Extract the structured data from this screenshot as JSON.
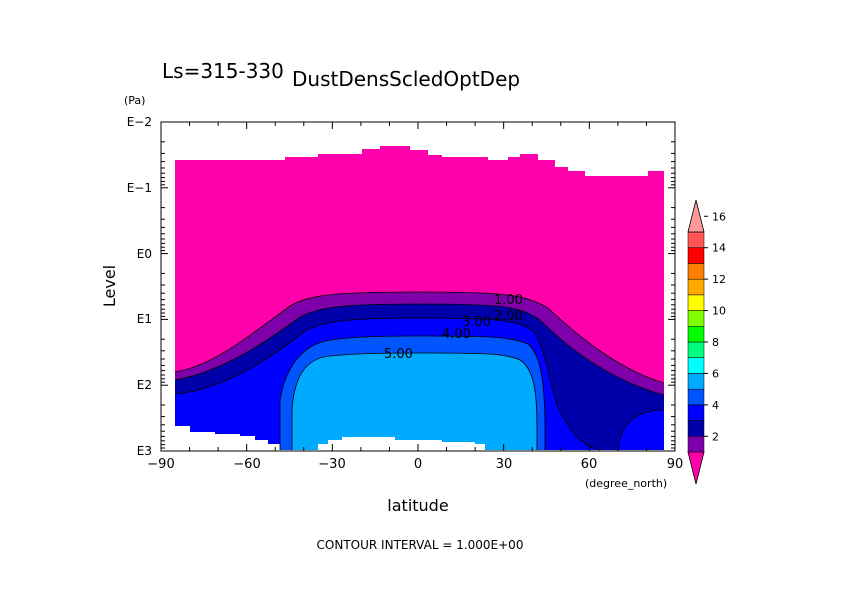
{
  "chart_data": {
    "type": "contour",
    "season_label": "Ls=315-330",
    "title": "DustDensScledOptDep",
    "xlabel": "latitude",
    "xunit": "(degree_north)",
    "ylabel": "Level",
    "yunit": "(Pa)",
    "xlim": [
      -90,
      90
    ],
    "ylim_log10_pa": [
      -2,
      3
    ],
    "y_scale": "log",
    "y_inverted": true,
    "x_ticks": [
      "−90",
      "−60",
      "−30",
      "0",
      "30",
      "60",
      "90"
    ],
    "y_ticks": [
      "E−2",
      "E−1",
      "E0",
      "E1",
      "E2",
      "E3"
    ],
    "contour_interval_text": "CONTOUR INTERVAL = 1.000E+00",
    "contour_labels": [
      "1.00",
      "2.00",
      "3.00",
      "4.00",
      "5.00"
    ],
    "colorbar": {
      "tick_labels": [
        "2",
        "4",
        "6",
        "8",
        "10",
        "12",
        "14",
        "16"
      ],
      "levels": [
        1,
        2,
        3,
        4,
        5,
        6,
        7,
        8,
        9,
        10,
        11,
        12,
        13,
        14,
        15,
        16,
        17
      ],
      "colors": [
        "#ff00aa",
        "#7f00aa",
        "#0000aa",
        "#0000ff",
        "#0055ff",
        "#00aaff",
        "#00ffff",
        "#00ff7f",
        "#00ff00",
        "#7fff00",
        "#ffff00",
        "#ffaa00",
        "#ff7f00",
        "#ff0000",
        "#ff5555",
        "#ff9999"
      ]
    },
    "max_value_region": {
      "value_range": [
        5,
        6
      ],
      "lat_range": [
        -40,
        40
      ],
      "level_range_log10_pa": [
        1.6,
        3
      ]
    }
  }
}
